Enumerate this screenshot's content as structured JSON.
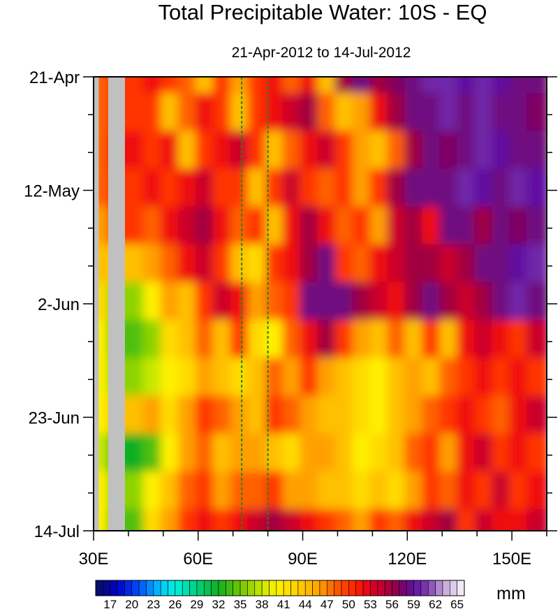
{
  "chart_data": {
    "type": "heatmap",
    "title": "Total Precipitable Water: 10S - EQ",
    "subtitle": "21-Apr-2012 to 14-Jul-2012",
    "units": "mm",
    "x_label": "",
    "y_label": "",
    "xlim": [
      30,
      160
    ],
    "x_ticks": [
      {
        "value": 30,
        "label": "30E"
      },
      {
        "value": 60,
        "label": "60E"
      },
      {
        "value": 90,
        "label": "90E"
      },
      {
        "value": 120,
        "label": "120E"
      },
      {
        "value": 150,
        "label": "150E"
      }
    ],
    "ylim_days": [
      0,
      84
    ],
    "y_ticks": [
      {
        "day": 0,
        "label": "21-Apr"
      },
      {
        "day": 21,
        "label": "12-May"
      },
      {
        "day": 42,
        "label": "2-Jun"
      },
      {
        "day": 63,
        "label": "23-Jun"
      },
      {
        "day": 84,
        "label": "14-Jul"
      }
    ],
    "reference_lines_lon": [
      72.5,
      80
    ],
    "reference_line_color": "#1a8a1a",
    "missing_color": "#c0c0c0",
    "lon_centers": [
      32.5,
      37.5,
      42.5,
      47.5,
      52.5,
      57.5,
      62.5,
      67.5,
      72.5,
      77.5,
      82.5,
      87.5,
      92.5,
      97.5,
      102.5,
      107.5,
      112.5,
      117.5,
      122.5,
      127.5,
      132.5,
      137.5,
      142.5,
      147.5,
      152.5,
      157.5
    ],
    "time_days": [
      0,
      7,
      14,
      21,
      28,
      35,
      42,
      49,
      56,
      63,
      70,
      77,
      84
    ],
    "values": [
      [
        48,
        null,
        50,
        52,
        50,
        48,
        44,
        50,
        46,
        50,
        52,
        48,
        52,
        44,
        56,
        58,
        56,
        57,
        58,
        60,
        60,
        59,
        60,
        59,
        58,
        58
      ],
      [
        48,
        null,
        50,
        50,
        44,
        48,
        52,
        50,
        44,
        50,
        52,
        54,
        56,
        48,
        44,
        46,
        52,
        56,
        58,
        58,
        60,
        58,
        60,
        58,
        58,
        57
      ],
      [
        48,
        null,
        52,
        50,
        52,
        44,
        50,
        52,
        54,
        50,
        44,
        48,
        52,
        54,
        50,
        46,
        44,
        48,
        56,
        58,
        57,
        58,
        60,
        59,
        58,
        58
      ],
      [
        48,
        null,
        50,
        52,
        50,
        52,
        54,
        50,
        50,
        44,
        50,
        54,
        50,
        48,
        50,
        46,
        50,
        56,
        58,
        58,
        58,
        60,
        59,
        58,
        60,
        59
      ],
      [
        46,
        null,
        50,
        48,
        52,
        54,
        56,
        52,
        48,
        50,
        44,
        52,
        56,
        52,
        48,
        50,
        46,
        54,
        56,
        52,
        58,
        58,
        56,
        58,
        57,
        58
      ],
      [
        44,
        null,
        44,
        46,
        48,
        52,
        54,
        50,
        44,
        42,
        50,
        52,
        56,
        58,
        50,
        48,
        52,
        54,
        56,
        56,
        54,
        56,
        58,
        58,
        59,
        60
      ],
      [
        42,
        null,
        36,
        40,
        46,
        44,
        50,
        54,
        52,
        46,
        48,
        50,
        58,
        58,
        58,
        56,
        54,
        52,
        56,
        58,
        56,
        54,
        56,
        58,
        60,
        58
      ],
      [
        40,
        null,
        34,
        36,
        42,
        44,
        48,
        44,
        50,
        42,
        40,
        48,
        52,
        56,
        50,
        46,
        44,
        48,
        44,
        50,
        44,
        52,
        54,
        52,
        50,
        54
      ],
      [
        40,
        null,
        36,
        38,
        40,
        42,
        46,
        44,
        42,
        44,
        48,
        46,
        50,
        46,
        44,
        42,
        40,
        44,
        46,
        44,
        48,
        50,
        52,
        50,
        52,
        50
      ],
      [
        40,
        null,
        44,
        46,
        42,
        46,
        50,
        48,
        46,
        44,
        50,
        48,
        46,
        44,
        44,
        42,
        40,
        44,
        46,
        48,
        50,
        52,
        50,
        48,
        52,
        54
      ],
      [
        38,
        null,
        32,
        34,
        40,
        46,
        48,
        44,
        46,
        46,
        44,
        42,
        46,
        46,
        44,
        40,
        42,
        44,
        48,
        50,
        46,
        52,
        54,
        50,
        52,
        50
      ],
      [
        40,
        null,
        36,
        40,
        44,
        48,
        50,
        46,
        48,
        48,
        50,
        46,
        46,
        44,
        44,
        42,
        44,
        42,
        46,
        50,
        48,
        52,
        50,
        54,
        50,
        52
      ],
      [
        40,
        null,
        34,
        42,
        46,
        50,
        52,
        50,
        52,
        54,
        56,
        54,
        52,
        50,
        48,
        46,
        50,
        48,
        52,
        54,
        56,
        50,
        54,
        52,
        52,
        54
      ]
    ],
    "colorbar": {
      "min": 15,
      "max": 66,
      "labels": [
        17,
        20,
        23,
        26,
        29,
        32,
        35,
        38,
        41,
        44,
        47,
        50,
        53,
        56,
        59,
        62,
        65
      ],
      "stops": [
        [
          15,
          "#0a0f5a"
        ],
        [
          18,
          "#0000c8"
        ],
        [
          21,
          "#0050ff"
        ],
        [
          24,
          "#00c8ff"
        ],
        [
          26,
          "#00f0e0"
        ],
        [
          29,
          "#00d080"
        ],
        [
          32,
          "#10b020"
        ],
        [
          35,
          "#70c800"
        ],
        [
          38,
          "#c8e800"
        ],
        [
          40,
          "#fff000"
        ],
        [
          43,
          "#ffd000"
        ],
        [
          46,
          "#ffa000"
        ],
        [
          48,
          "#ff6000"
        ],
        [
          51,
          "#ff2000"
        ],
        [
          53,
          "#e00020"
        ],
        [
          56,
          "#a00040"
        ],
        [
          57,
          "#800060"
        ],
        [
          59,
          "#6010a0"
        ],
        [
          61,
          "#8040b0"
        ],
        [
          63,
          "#c0a0d8"
        ],
        [
          66,
          "#f8f8f8"
        ]
      ]
    }
  }
}
